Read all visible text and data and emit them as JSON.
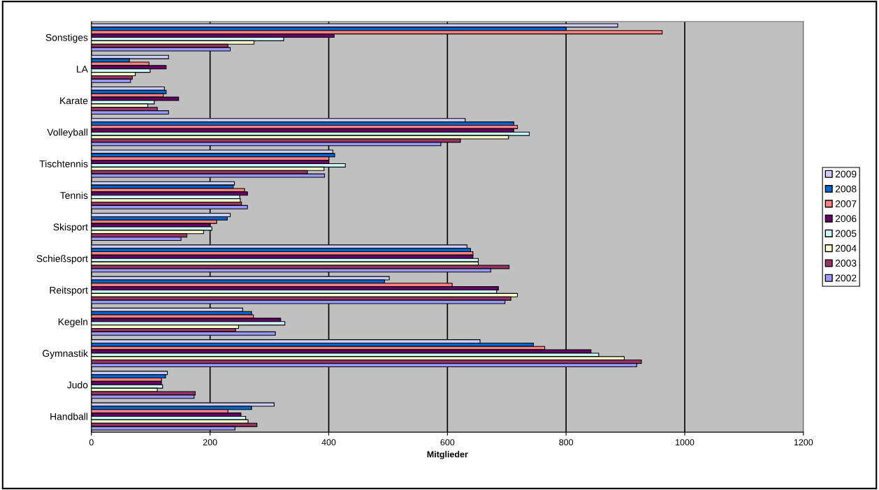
{
  "chart_data": {
    "type": "bar",
    "orientation": "horizontal",
    "xlabel": "Mitglieder",
    "categories": [
      "Sonstiges",
      "LA",
      "Karate",
      "Volleyball",
      "Tischtennis",
      "Tennis",
      "Skisport",
      "Schießsport",
      "Reitsport",
      "Kegeln",
      "Gymnastik",
      "Judo",
      "Handball"
    ],
    "series": [
      {
        "name": "2009",
        "color": "#ccccff",
        "values": [
          887,
          130,
          123,
          630,
          407,
          241,
          234,
          633,
          502,
          255,
          655,
          128,
          308
        ]
      },
      {
        "name": "2008",
        "color": "#0066cc",
        "values": [
          800,
          64,
          126,
          712,
          410,
          239,
          229,
          639,
          494,
          270,
          745,
          125,
          270
        ]
      },
      {
        "name": "2007",
        "color": "#ff8080",
        "values": [
          962,
          97,
          121,
          718,
          400,
          258,
          211,
          643,
          608,
          273,
          764,
          118,
          230
        ]
      },
      {
        "name": "2006",
        "color": "#660066",
        "values": [
          409,
          126,
          147,
          712,
          400,
          263,
          200,
          643,
          686,
          319,
          842,
          118,
          252
        ]
      },
      {
        "name": "2005",
        "color": "#ccffff",
        "values": [
          324,
          99,
          106,
          738,
          428,
          250,
          203,
          652,
          683,
          326,
          855,
          120,
          260
        ]
      },
      {
        "name": "2004",
        "color": "#ffffcc",
        "values": [
          274,
          74,
          95,
          703,
          392,
          251,
          189,
          652,
          718,
          248,
          898,
          111,
          264
        ]
      },
      {
        "name": "2003",
        "color": "#993366",
        "values": [
          230,
          69,
          111,
          622,
          364,
          253,
          161,
          704,
          707,
          243,
          927,
          175,
          279
        ]
      },
      {
        "name": "2002",
        "color": "#9999ff",
        "values": [
          234,
          66,
          130,
          589,
          393,
          263,
          151,
          673,
          697,
          310,
          919,
          173,
          242
        ]
      }
    ],
    "xlim": [
      0,
      1200
    ],
    "xticks": [
      0,
      200,
      400,
      600,
      800,
      1000,
      1200
    ],
    "grid": "x",
    "legend": "right"
  }
}
